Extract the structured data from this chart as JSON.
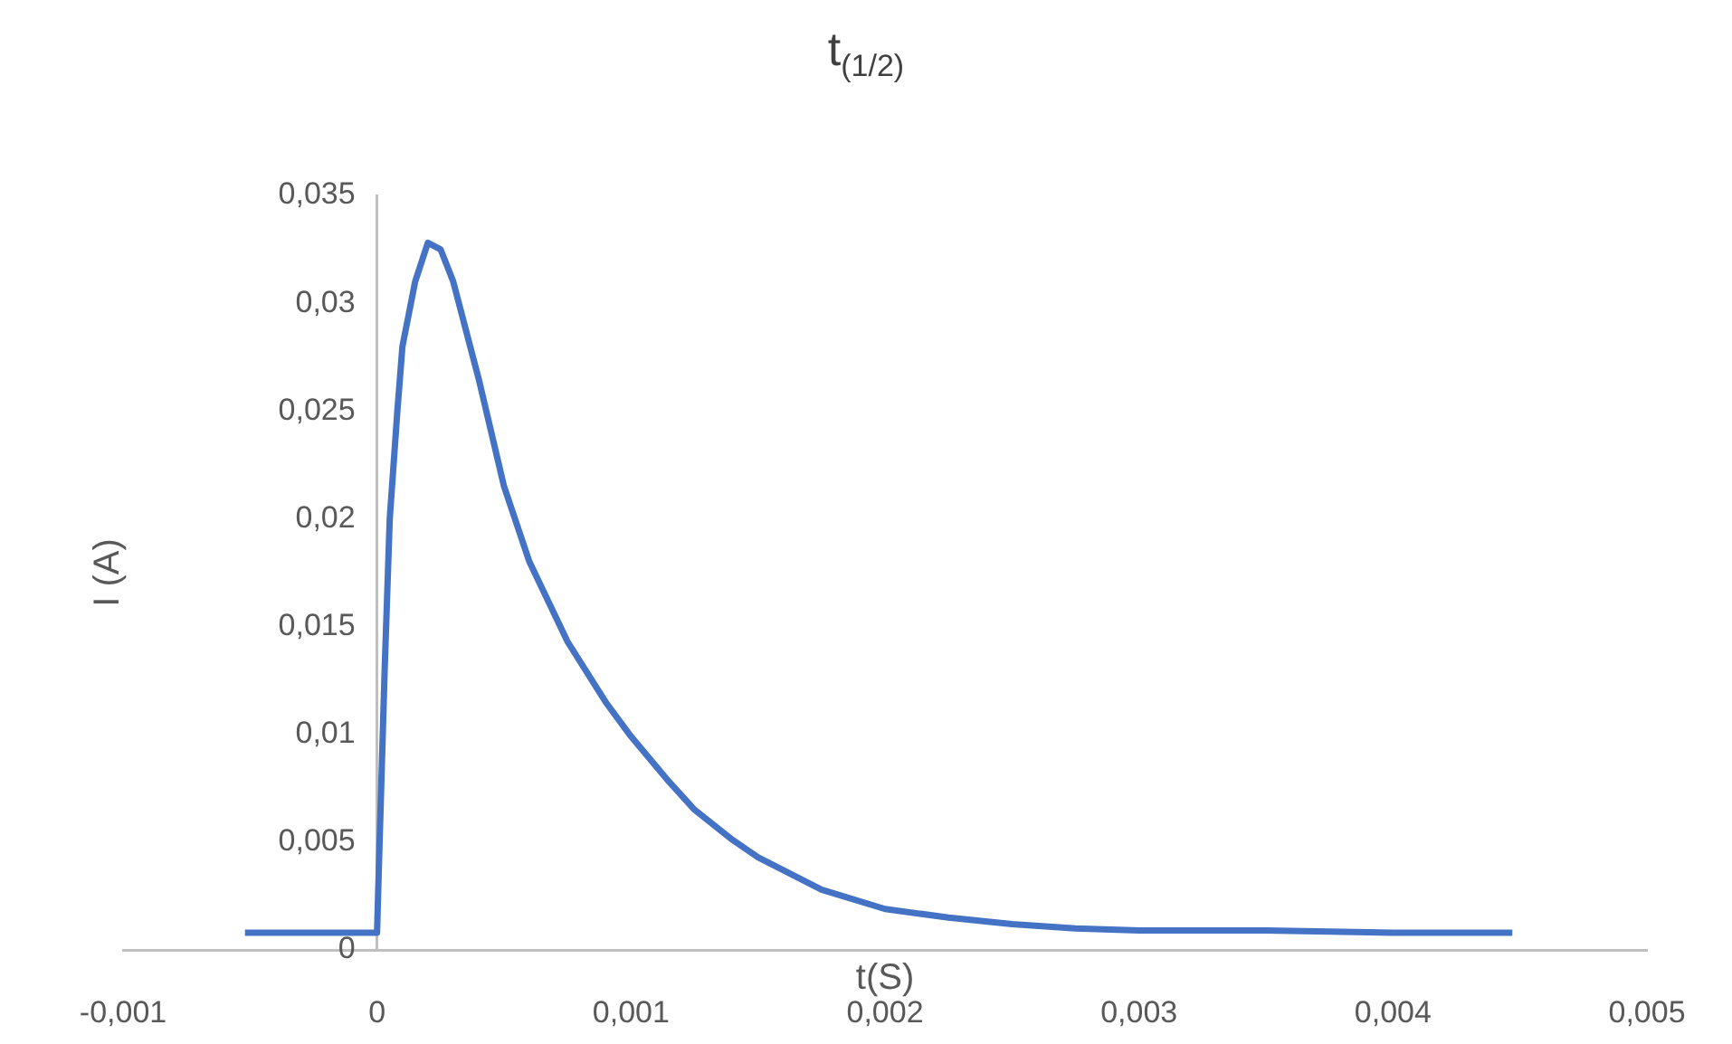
{
  "chart_data": {
    "type": "line",
    "title": "t$_{(1/2)}$",
    "xlabel": "t(S)",
    "ylabel": "I (A)",
    "series": [
      {
        "color": "#4472c4",
        "x": [
          -0.00052,
          -0.0003,
          -0.0001,
          0,
          1e-05,
          3e-05,
          5e-05,
          8e-05,
          0.0001,
          0.00015,
          0.0002,
          0.00025,
          0.0003,
          0.0004,
          0.0005,
          0.0006,
          0.00075,
          0.0009,
          0.001,
          0.00115,
          0.00125,
          0.0014,
          0.0015,
          0.00175,
          0.002,
          0.00225,
          0.0025,
          0.00275,
          0.003,
          0.0035,
          0.004,
          0.00447
        ],
        "values": [
          0.0008,
          0.0008,
          0.0008,
          0.0008,
          0.005,
          0.013,
          0.02,
          0.025,
          0.028,
          0.031,
          0.0328,
          0.0325,
          0.031,
          0.0265,
          0.0215,
          0.018,
          0.0143,
          0.0115,
          0.0099,
          0.0078,
          0.0065,
          0.0051,
          0.0043,
          0.0028,
          0.0019,
          0.0015,
          0.0012,
          0.001,
          0.0009,
          0.0009,
          0.0008,
          0.0008
        ]
      }
    ],
    "xlim": [
      -0.001,
      0.005
    ],
    "xticks": [
      {
        "value": -0.001,
        "label": "-0,001"
      },
      0,
      {
        "value": 0.001,
        "label": "0,001"
      },
      {
        "value": 0.002,
        "label": "0,002"
      },
      {
        "value": 0.003,
        "label": "0,003"
      },
      {
        "value": 0.004,
        "label": "0,004"
      },
      {
        "value": 0.005,
        "label": "0,005"
      }
    ],
    "ylim": [
      0,
      0.035
    ],
    "yticks": [
      0,
      {
        "value": 0.005,
        "label": "0,005"
      },
      {
        "value": 0.01,
        "label": "0,01"
      },
      {
        "value": 0.015,
        "label": "0,015"
      },
      {
        "value": 0.02,
        "label": "0,02"
      },
      {
        "value": 0.025,
        "label": "0,025"
      },
      {
        "value": 0.03,
        "label": "0,03"
      },
      {
        "value": 0.035,
        "label": "0,035"
      }
    ],
    "grid": false,
    "legend": false,
    "marker": "none",
    "line_style": "solid"
  }
}
